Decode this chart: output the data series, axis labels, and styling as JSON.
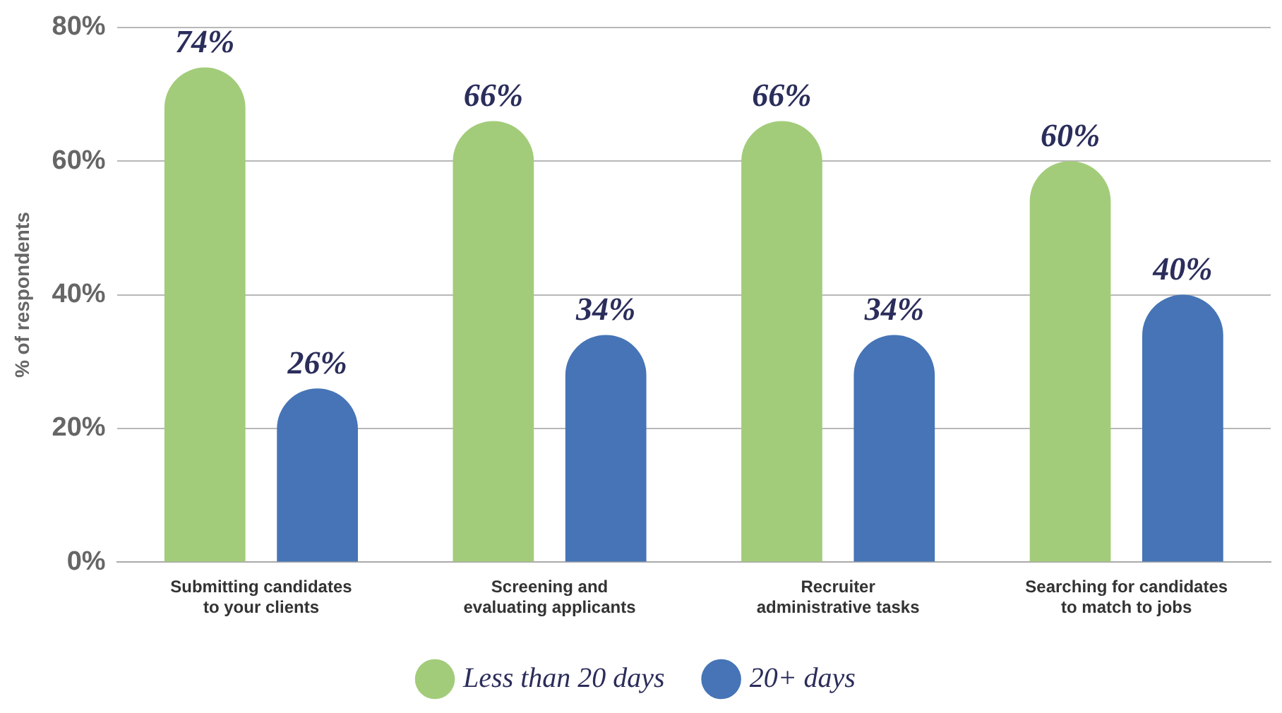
{
  "chart_data": {
    "type": "bar",
    "ylabel": "% of respondents",
    "categories": [
      "Submitting candidates to your clients",
      "Screening and evaluating applicants",
      "Recruiter administrative tasks",
      "Searching for candidates to match to jobs"
    ],
    "series": [
      {
        "name": "Less than 20 days",
        "color": "#a3cc7a",
        "values": [
          74,
          66,
          66,
          60
        ],
        "value_labels": [
          "74%",
          "66%",
          "66%",
          "60%"
        ]
      },
      {
        "name": "20+ days",
        "color": "#4674b6",
        "values": [
          26,
          34,
          34,
          40
        ],
        "value_labels": [
          "26%",
          "34%",
          "34%",
          "40%"
        ]
      }
    ],
    "ylim": [
      0,
      80
    ],
    "yticks": [
      {
        "value": 0,
        "label": "0%"
      },
      {
        "value": 20,
        "label": "20%"
      },
      {
        "value": 40,
        "label": "40%"
      },
      {
        "value": 60,
        "label": "60%"
      },
      {
        "value": 80,
        "label": "80%"
      }
    ],
    "grid": "y",
    "legend": "bottom"
  }
}
